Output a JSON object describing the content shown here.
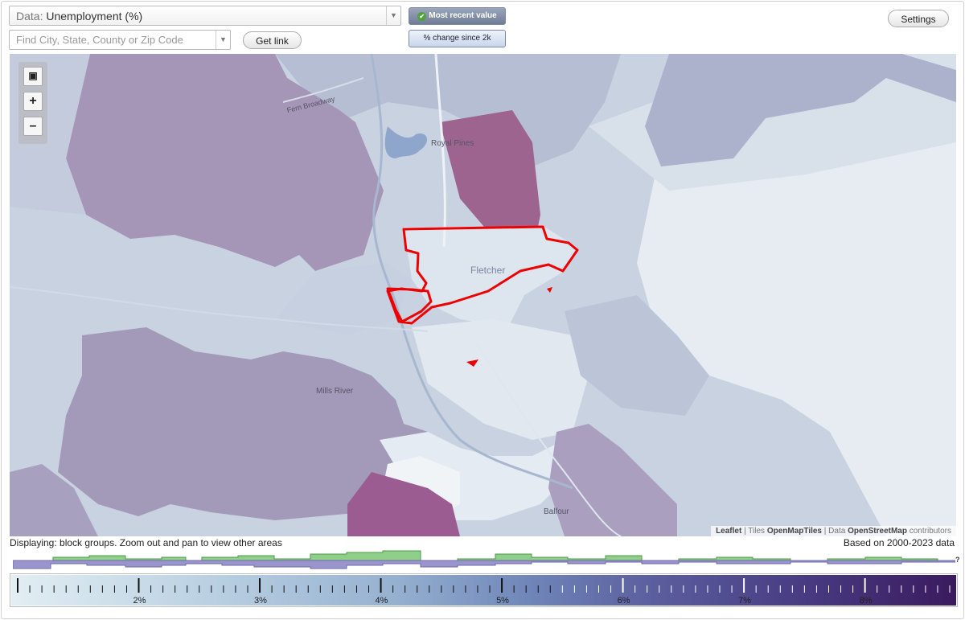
{
  "controls": {
    "data_prefix": "Data:",
    "data_value": "Unemployment (%)",
    "search_placeholder": "Find City, State, County or Zip Code",
    "get_link": "Get link",
    "settings": "Settings",
    "toggle_recent": "Most recent value",
    "toggle_change": "% change since 2k"
  },
  "map": {
    "place_labels": {
      "royal_pines": "Royal Pines",
      "fletcher": "Fletcher",
      "mills_river": "Mills River",
      "balfour": "Balfour",
      "road": "Fern Broadway"
    },
    "attribution": {
      "leaflet": "Leaflet",
      "sep": " | ",
      "tiles": "Tiles",
      "tiles_src": "OpenMapTiles",
      "data": "Data",
      "data_src": "OpenStreetMap",
      "contrib": "contributors"
    },
    "colors": {
      "boundary": "#ee0000",
      "highest": "#9a5a8e"
    }
  },
  "info": {
    "displaying": "Displaying: block groups. Zoom out and pan to view other areas",
    "based_on": "Based on 2000-2023 data",
    "help": "?"
  },
  "legend": {
    "tick_labels": [
      "2%",
      "3%",
      "4%",
      "5%",
      "6%",
      "7%",
      "8%"
    ],
    "min_percent": 1.0,
    "max_percent": 8.7
  }
}
